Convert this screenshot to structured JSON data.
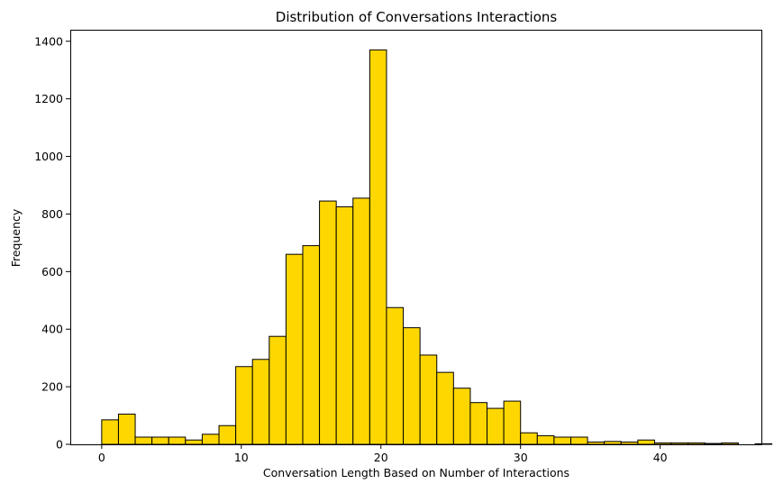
{
  "chart_data": {
    "type": "bar",
    "title": "Distribution of Conversations Interactions",
    "xlabel": "Conversation Length Based on Number of Interactions",
    "ylabel": "Frequency",
    "bin_width": 1.2,
    "x_start": 0,
    "xlim": [
      -2.25,
      47.25
    ],
    "ylim": [
      0,
      1440
    ],
    "x_ticks": [
      0,
      10,
      20,
      30,
      40
    ],
    "y_ticks": [
      0,
      200,
      400,
      600,
      800,
      1000,
      1200,
      1400
    ],
    "values": [
      85,
      105,
      25,
      25,
      25,
      15,
      35,
      65,
      270,
      295,
      375,
      660,
      690,
      845,
      825,
      855,
      1370,
      475,
      405,
      310,
      250,
      195,
      145,
      125,
      150,
      40,
      30,
      25,
      25,
      8,
      10,
      8,
      15,
      5,
      5,
      5,
      3,
      5,
      0,
      2
    ],
    "bar_color": "#FFD700",
    "edge_color": "#000000",
    "grid": false
  }
}
